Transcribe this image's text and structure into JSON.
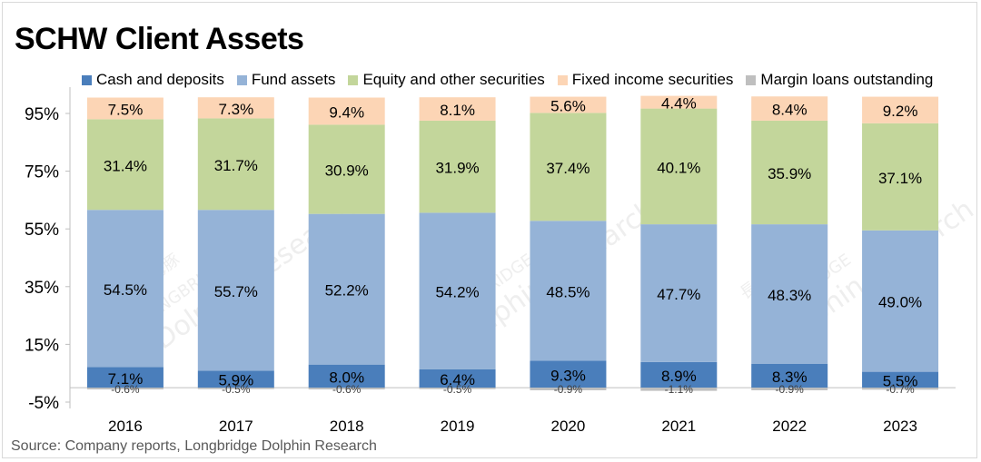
{
  "title": "SCHW Client Assets",
  "source": "Source:  Company reports, Longbridge Dolphin Research",
  "colors": {
    "cash": "#4a7ebb",
    "fund": "#95b3d7",
    "equity": "#c3d69b",
    "fixed": "#fcd5b5",
    "margin": "#bfbfbf"
  },
  "chart_data": {
    "type": "bar",
    "stacked": true,
    "title": "SCHW Client Assets",
    "categories": [
      "2016",
      "2017",
      "2018",
      "2019",
      "2020",
      "2021",
      "2022",
      "2023"
    ],
    "series": [
      {
        "name": "Cash and deposits",
        "color_key": "cash",
        "values": [
          7.1,
          5.9,
          8.0,
          6.4,
          9.3,
          8.9,
          8.3,
          5.5
        ],
        "labels": [
          "7.1%",
          "5.9%",
          "8.0%",
          "6.4%",
          "9.3%",
          "8.9%",
          "8.3%",
          "5.5%"
        ]
      },
      {
        "name": "Fund assets",
        "color_key": "fund",
        "values": [
          54.5,
          55.7,
          52.2,
          54.2,
          48.5,
          47.7,
          48.3,
          49.0
        ],
        "labels": [
          "54.5%",
          "55.7%",
          "52.2%",
          "54.2%",
          "48.5%",
          "47.7%",
          "48.3%",
          "49.0%"
        ]
      },
      {
        "name": "Equity and other securities",
        "color_key": "equity",
        "values": [
          31.4,
          31.7,
          30.9,
          31.9,
          37.4,
          40.1,
          35.9,
          37.1
        ],
        "labels": [
          "31.4%",
          "31.7%",
          "30.9%",
          "31.9%",
          "37.4%",
          "40.1%",
          "35.9%",
          "37.1%"
        ]
      },
      {
        "name": "Fixed income securities",
        "color_key": "fixed",
        "values": [
          7.5,
          7.3,
          9.4,
          8.1,
          5.6,
          4.4,
          8.4,
          9.2
        ],
        "labels": [
          "7.5%",
          "7.3%",
          "9.4%",
          "8.1%",
          "5.6%",
          "4.4%",
          "8.4%",
          "9.2%"
        ]
      },
      {
        "name": "Margin loans outstanding",
        "color_key": "margin",
        "values": [
          -0.6,
          -0.5,
          -0.6,
          -0.5,
          -0.9,
          -1.1,
          -0.9,
          -0.7
        ],
        "labels": [
          "-0.6%",
          "-0.5%",
          "-0.6%",
          "-0.5%",
          "-0.9%",
          "-1.1%",
          "-0.9%",
          "-0.7%"
        ]
      }
    ],
    "y_ticks": [
      -5,
      15,
      35,
      55,
      75,
      95
    ],
    "y_tick_labels": [
      "-5%",
      "15%",
      "35%",
      "55%",
      "75%",
      "95%"
    ],
    "ylim": [
      -5,
      100
    ],
    "legend_position": "top",
    "grid": false
  },
  "watermark": {
    "lines": [
      "長橋海豚",
      "LONGBRIDGE",
      "Dolphin Research"
    ]
  }
}
